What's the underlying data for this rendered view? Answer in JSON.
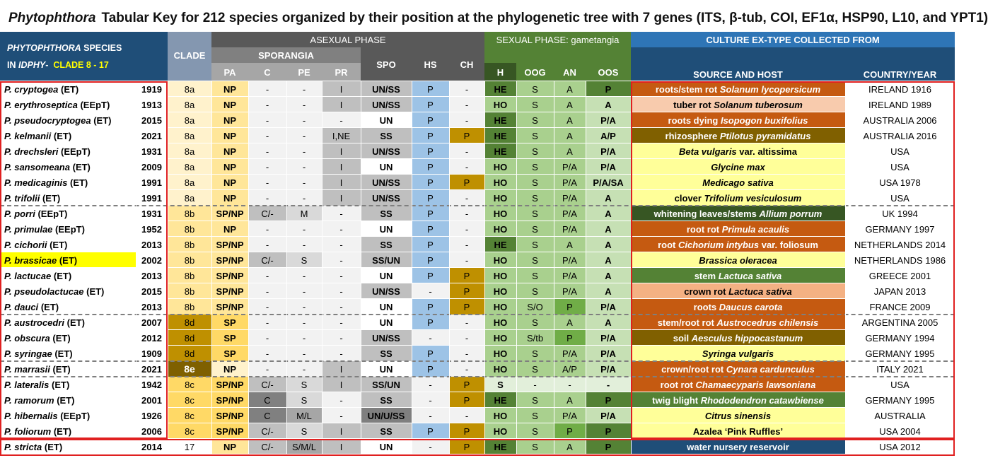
{
  "title": {
    "genus": "Phytophthora",
    "rest": "Tabular Key for 212 species organized by their position at the phylogenetic tree with 7 genes (ITS, β-tub, COI, EF1α, HSP90, L10, and YPT1)"
  },
  "headers": {
    "species_line1_a": "PHYTOPHTHORA",
    "species_line1_b": "SPECIES",
    "species_line2_a": "IN",
    "species_line2_b": "IDPHY",
    "species_line2_c": "-",
    "species_line2_clade": "CLADE 8 - 17",
    "clade": "CLADE",
    "asexual": "ASEXUAL PHASE",
    "sporangia": "SPORANGIA",
    "sexual": "SEXUAL PHASE: gametangia",
    "culture": "CULTURE EX-TYPE COLLECTED FROM",
    "source_host": "SOURCE AND HOST",
    "country_year": "COUNTRY/YEAR",
    "cols": [
      "PA",
      "C",
      "PE",
      "PR",
      "SPO",
      "HS",
      "CH",
      "H",
      "OOG",
      "AN",
      "OOS"
    ]
  },
  "colors": {
    "header_blue": "#1f4e78",
    "culture_blue": "#2e75b6",
    "asexual_dark": "#595959",
    "sexual_green": "#548235",
    "h_header": "#375623",
    "clade_header": "#8497b0",
    "yellow_highlight": "#ffff00",
    "red_border": "#e02020"
  },
  "rows": [
    {
      "name": "P. cryptogea",
      "tag": "(ET)",
      "year": "1919",
      "clade": "8a",
      "pa": "NP",
      "c": "-",
      "pe": "-",
      "pr": "I",
      "spo": "UN/SS",
      "hs": "P",
      "ch": "-",
      "h": "HE",
      "oog": "S",
      "an": "A",
      "oos": "P",
      "src_plain": "roots/stem rot",
      "src_ital": "Solanum lycopersicum",
      "src_tail": "",
      "src_color": "#c55a11",
      "src_text": "#ffffff",
      "country": "IRELAND 1916"
    },
    {
      "name": "P. erythroseptica",
      "tag": "(EEpT)",
      "year": "1913",
      "clade": "8a",
      "pa": "NP",
      "c": "-",
      "pe": "-",
      "pr": "I",
      "spo": "UN/SS",
      "hs": "P",
      "ch": "-",
      "h": "HO",
      "oog": "S",
      "an": "A",
      "oos": "A",
      "src_plain": "tuber rot",
      "src_ital": "Solanum tuberosum",
      "src_tail": "",
      "src_color": "#f8cbad",
      "src_text": "#000000",
      "country": "IRELAND 1989"
    },
    {
      "name": "P. pseudocryptogea",
      "tag": "(ET)",
      "year": "2015",
      "clade": "8a",
      "pa": "NP",
      "c": "-",
      "pe": "-",
      "pr": "-",
      "spo": "UN",
      "hs": "P",
      "ch": "-",
      "h": "HE",
      "oog": "S",
      "an": "A",
      "oos": "P/A",
      "src_plain": "roots dying",
      "src_ital": "Isopogon buxifolius",
      "src_tail": "",
      "src_color": "#c55a11",
      "src_text": "#ffffff",
      "country": "AUSTRALIA 2006"
    },
    {
      "name": "P. kelmanii",
      "tag": "(ET)",
      "year": "2021",
      "clade": "8a",
      "pa": "NP",
      "c": "-",
      "pe": "-",
      "pr": "I,NE",
      "spo": "SS",
      "hs": "P",
      "ch": "P",
      "h": "HE",
      "oog": "S",
      "an": "A",
      "oos": "A/P",
      "src_plain": "rhizosphere",
      "src_ital": "Ptilotus pyramidatus",
      "src_tail": "",
      "src_color": "#806000",
      "src_text": "#ffffff",
      "country": "AUSTRALIA 2016"
    },
    {
      "name": "P. drechsleri",
      "tag": "(EEpT)",
      "year": "1931",
      "clade": "8a",
      "pa": "NP",
      "c": "-",
      "pe": "-",
      "pr": "I",
      "spo": "UN/SS",
      "hs": "P",
      "ch": "-",
      "h": "HE",
      "oog": "S",
      "an": "A",
      "oos": "P/A",
      "src_plain": "",
      "src_ital": "Beta vulgaris",
      "src_tail": "var. altissima",
      "src_color": "#ffff99",
      "src_text": "#000000",
      "country": "USA"
    },
    {
      "name": "P. sansomeana",
      "tag": "(ET)",
      "year": "2009",
      "clade": "8a",
      "pa": "NP",
      "c": "-",
      "pe": "-",
      "pr": "I",
      "spo": "UN",
      "hs": "P",
      "ch": "-",
      "h": "HO",
      "oog": "S",
      "an": "P/A",
      "oos": "P/A",
      "src_plain": "",
      "src_ital": "Glycine max",
      "src_tail": "",
      "src_color": "#ffff99",
      "src_text": "#000000",
      "country": "USA"
    },
    {
      "name": "P. medicaginis",
      "tag": "(ET)",
      "year": "1991",
      "clade": "8a",
      "pa": "NP",
      "c": "-",
      "pe": "-",
      "pr": "I",
      "spo": "UN/SS",
      "hs": "P",
      "ch": "P",
      "h": "HO",
      "oog": "S",
      "an": "P/A",
      "oos": "P/A/SA",
      "src_plain": "",
      "src_ital": "Medicago sativa",
      "src_tail": "",
      "src_color": "#ffff99",
      "src_text": "#000000",
      "country": "USA 1978"
    },
    {
      "name": "P. trifolii",
      "tag": "(ET)",
      "year": "1991",
      "clade": "8a",
      "pa": "NP",
      "c": "-",
      "pe": "-",
      "pr": "I",
      "spo": "UN/SS",
      "hs": "P",
      "ch": "-",
      "h": "HO",
      "oog": "S",
      "an": "P/A",
      "oos": "A",
      "src_plain": "clover",
      "src_ital": "Trifolium vesiculosum",
      "src_tail": "",
      "src_color": "#ffff99",
      "src_text": "#000000",
      "country": "USA"
    },
    {
      "name": "P. porri",
      "tag": "(EEpT)",
      "year": "1931",
      "clade": "8b",
      "pa": "SP/NP",
      "c": "C/-",
      "pe": "M",
      "pr": "-",
      "spo": "SS",
      "hs": "P",
      "ch": "-",
      "h": "HO",
      "oog": "S",
      "an": "P/A",
      "oos": "A",
      "src_plain": "whitening leaves/stems",
      "src_ital": "Allium porrum",
      "src_tail": "",
      "src_color": "#375623",
      "src_text": "#ffffff",
      "country": "UK 1994"
    },
    {
      "name": "P. primulae",
      "tag": "(EEpT)",
      "year": "1952",
      "clade": "8b",
      "pa": "NP",
      "c": "-",
      "pe": "-",
      "pr": "-",
      "spo": "UN",
      "hs": "P",
      "ch": "-",
      "h": "HO",
      "oog": "S",
      "an": "P/A",
      "oos": "A",
      "src_plain": "root rot",
      "src_ital": "Primula acaulis",
      "src_tail": "",
      "src_color": "#c55a11",
      "src_text": "#ffffff",
      "country": "GERMANY 1997"
    },
    {
      "name": "P. cichorii",
      "tag": "(ET)",
      "year": "2013",
      "clade": "8b",
      "pa": "SP/NP",
      "c": "-",
      "pe": "-",
      "pr": "-",
      "spo": "SS",
      "hs": "P",
      "ch": "-",
      "h": "HE",
      "oog": "S",
      "an": "A",
      "oos": "A",
      "src_plain": "root",
      "src_ital": "Cichorium intybus",
      "src_tail": "var. foliosum",
      "src_color": "#c55a11",
      "src_text": "#ffffff",
      "country": "NETHERLANDS 2014"
    },
    {
      "name": "P. brassicae",
      "tag": "(ET)",
      "year": "2002",
      "clade": "8b",
      "pa": "SP/NP",
      "c": "C/-",
      "pe": "S",
      "pr": "-",
      "spo": "SS/UN",
      "hs": "P",
      "ch": "-",
      "h": "HO",
      "oog": "S",
      "an": "P/A",
      "oos": "A",
      "src_plain": "",
      "src_ital": "Brassica oleracea",
      "src_tail": "",
      "src_color": "#ffff99",
      "src_text": "#000000",
      "country": "NETHERLANDS 1986",
      "highlight": true
    },
    {
      "name": "P. lactucae",
      "tag": "(ET)",
      "year": "2013",
      "clade": "8b",
      "pa": "SP/NP",
      "c": "-",
      "pe": "-",
      "pr": "-",
      "spo": "UN",
      "hs": "P",
      "ch": "P",
      "h": "HO",
      "oog": "S",
      "an": "P/A",
      "oos": "A",
      "src_plain": "stem",
      "src_ital": "Lactuca sativa",
      "src_tail": "",
      "src_color": "#548235",
      "src_text": "#ffffff",
      "country": "GREECE 2001"
    },
    {
      "name": "P. pseudolactucae",
      "tag": "(ET)",
      "year": "2015",
      "clade": "8b",
      "pa": "SP/NP",
      "c": "-",
      "pe": "-",
      "pr": "-",
      "spo": "UN/SS",
      "hs": "-",
      "ch": "P",
      "h": "HO",
      "oog": "S",
      "an": "P/A",
      "oos": "A",
      "src_plain": "crown rot",
      "src_ital": "Lactuca sativa",
      "src_tail": "",
      "src_color": "#f4b183",
      "src_text": "#000000",
      "country": "JAPAN 2013"
    },
    {
      "name": "P. dauci",
      "tag": "(ET)",
      "year": "2013",
      "clade": "8b",
      "pa": "SP/NP",
      "c": "-",
      "pe": "-",
      "pr": "-",
      "spo": "UN",
      "hs": "P",
      "ch": "P",
      "h": "HO",
      "oog": "S/O",
      "an": "P",
      "oos": "P/A",
      "src_plain": "roots",
      "src_ital": "Daucus carota",
      "src_tail": "",
      "src_color": "#c55a11",
      "src_text": "#ffffff",
      "country": "FRANCE 2009"
    },
    {
      "name": "P. austrocedri",
      "tag": "(ET)",
      "year": "2007",
      "clade": "8d",
      "pa": "SP",
      "c": "-",
      "pe": "-",
      "pr": "-",
      "spo": "UN",
      "hs": "P",
      "ch": "-",
      "h": "HO",
      "oog": "S",
      "an": "A",
      "oos": "A",
      "src_plain": "stem/root rot",
      "src_ital": "Austrocedrus chilensis",
      "src_tail": "",
      "src_color": "#c55a11",
      "src_text": "#ffffff",
      "country": "ARGENTINA 2005"
    },
    {
      "name": "P. obscura",
      "tag": "(ET)",
      "year": "2012",
      "clade": "8d",
      "pa": "SP",
      "c": "-",
      "pe": "-",
      "pr": "-",
      "spo": "UN/SS",
      "hs": "-",
      "ch": "-",
      "h": "HO",
      "oog": "S/tb",
      "an": "P",
      "oos": "P/A",
      "src_plain": "soil",
      "src_ital": "Aesculus hippocastanum",
      "src_tail": "",
      "src_color": "#806000",
      "src_text": "#ffffff",
      "country": "GERMANY 1994"
    },
    {
      "name": "P. syringae",
      "tag": "(ET)",
      "year": "1909",
      "clade": "8d",
      "pa": "SP",
      "c": "-",
      "pe": "-",
      "pr": "-",
      "spo": "SS",
      "hs": "P",
      "ch": "-",
      "h": "HO",
      "oog": "S",
      "an": "P/A",
      "oos": "P/A",
      "src_plain": "",
      "src_ital": "Syringa vulgaris",
      "src_tail": "",
      "src_color": "#ffff99",
      "src_text": "#000000",
      "country": "GERMANY 1995"
    },
    {
      "name": "P. marrasii",
      "tag": "(ET)",
      "year": "2021",
      "clade": "8e",
      "pa": "NP",
      "c": "-",
      "pe": "-",
      "pr": "I",
      "spo": "UN",
      "hs": "P",
      "ch": "-",
      "h": "HO",
      "oog": "S",
      "an": "A/P",
      "oos": "P/A",
      "src_plain": "crown/root rot",
      "src_ital": "Cynara cardunculus",
      "src_tail": "",
      "src_color": "#c55a11",
      "src_text": "#ffffff",
      "country": "ITALY 2021"
    },
    {
      "name": "P. lateralis",
      "tag": "(ET)",
      "year": "1942",
      "clade": "8c",
      "pa": "SP/NP",
      "c": "C/-",
      "pe": "S",
      "pr": "I",
      "spo": "SS/UN",
      "hs": "-",
      "ch": "P",
      "h": "S",
      "oog": "-",
      "an": "-",
      "oos": "-",
      "src_plain": "root rot",
      "src_ital": "Chamaecyparis lawsoniana",
      "src_tail": "",
      "src_color": "#c55a11",
      "src_text": "#ffffff",
      "country": "USA"
    },
    {
      "name": "P. ramorum",
      "tag": "(ET)",
      "year": "2001",
      "clade": "8c",
      "pa": "SP/NP",
      "c": "C",
      "pe": "S",
      "pr": "-",
      "spo": "SS",
      "hs": "-",
      "ch": "P",
      "h": "HE",
      "oog": "S",
      "an": "A",
      "oos": "P",
      "src_plain": "twig blight",
      "src_ital": "Rhododendron catawbiense",
      "src_tail": "",
      "src_color": "#548235",
      "src_text": "#ffffff",
      "country": "GERMANY 1995"
    },
    {
      "name": "P. hibernalis",
      "tag": "(EEpT)",
      "year": "1926",
      "clade": "8c",
      "pa": "SP/NP",
      "c": "C",
      "pe": "M/L",
      "pr": "-",
      "spo": "UN/U/SS",
      "hs": "-",
      "ch": "-",
      "h": "HO",
      "oog": "S",
      "an": "P/A",
      "oos": "P/A",
      "src_plain": "",
      "src_ital": "Citrus sinensis",
      "src_tail": "",
      "src_color": "#ffff99",
      "src_text": "#000000",
      "country": "AUSTRALIA"
    },
    {
      "name": "P. foliorum",
      "tag": "(ET)",
      "year": "2006",
      "clade": "8c",
      "pa": "SP/NP",
      "c": "C/-",
      "pe": "S",
      "pr": "I",
      "spo": "SS",
      "hs": "P",
      "ch": "P",
      "h": "HO",
      "oog": "S",
      "an": "P",
      "oos": "P",
      "src_plain": "Azalea ‘Pink Ruffles’",
      "src_ital": "",
      "src_tail": "",
      "src_color": "#ffff99",
      "src_text": "#000000",
      "country": "USA 2004"
    },
    {
      "name": "P. stricta",
      "tag": "(ET)",
      "year": "2014",
      "clade": "17",
      "pa": "NP",
      "c": "C/-",
      "pe": "S/M/L",
      "pr": "I",
      "spo": "UN",
      "hs": "-",
      "ch": "P",
      "h": "HE",
      "oog": "S",
      "an": "A",
      "oos": "P",
      "src_plain": "water nursery reservoir",
      "src_ital": "",
      "src_tail": "",
      "src_color": "#1f4e78",
      "src_text": "#ffffff",
      "country": "USA 2012"
    }
  ]
}
